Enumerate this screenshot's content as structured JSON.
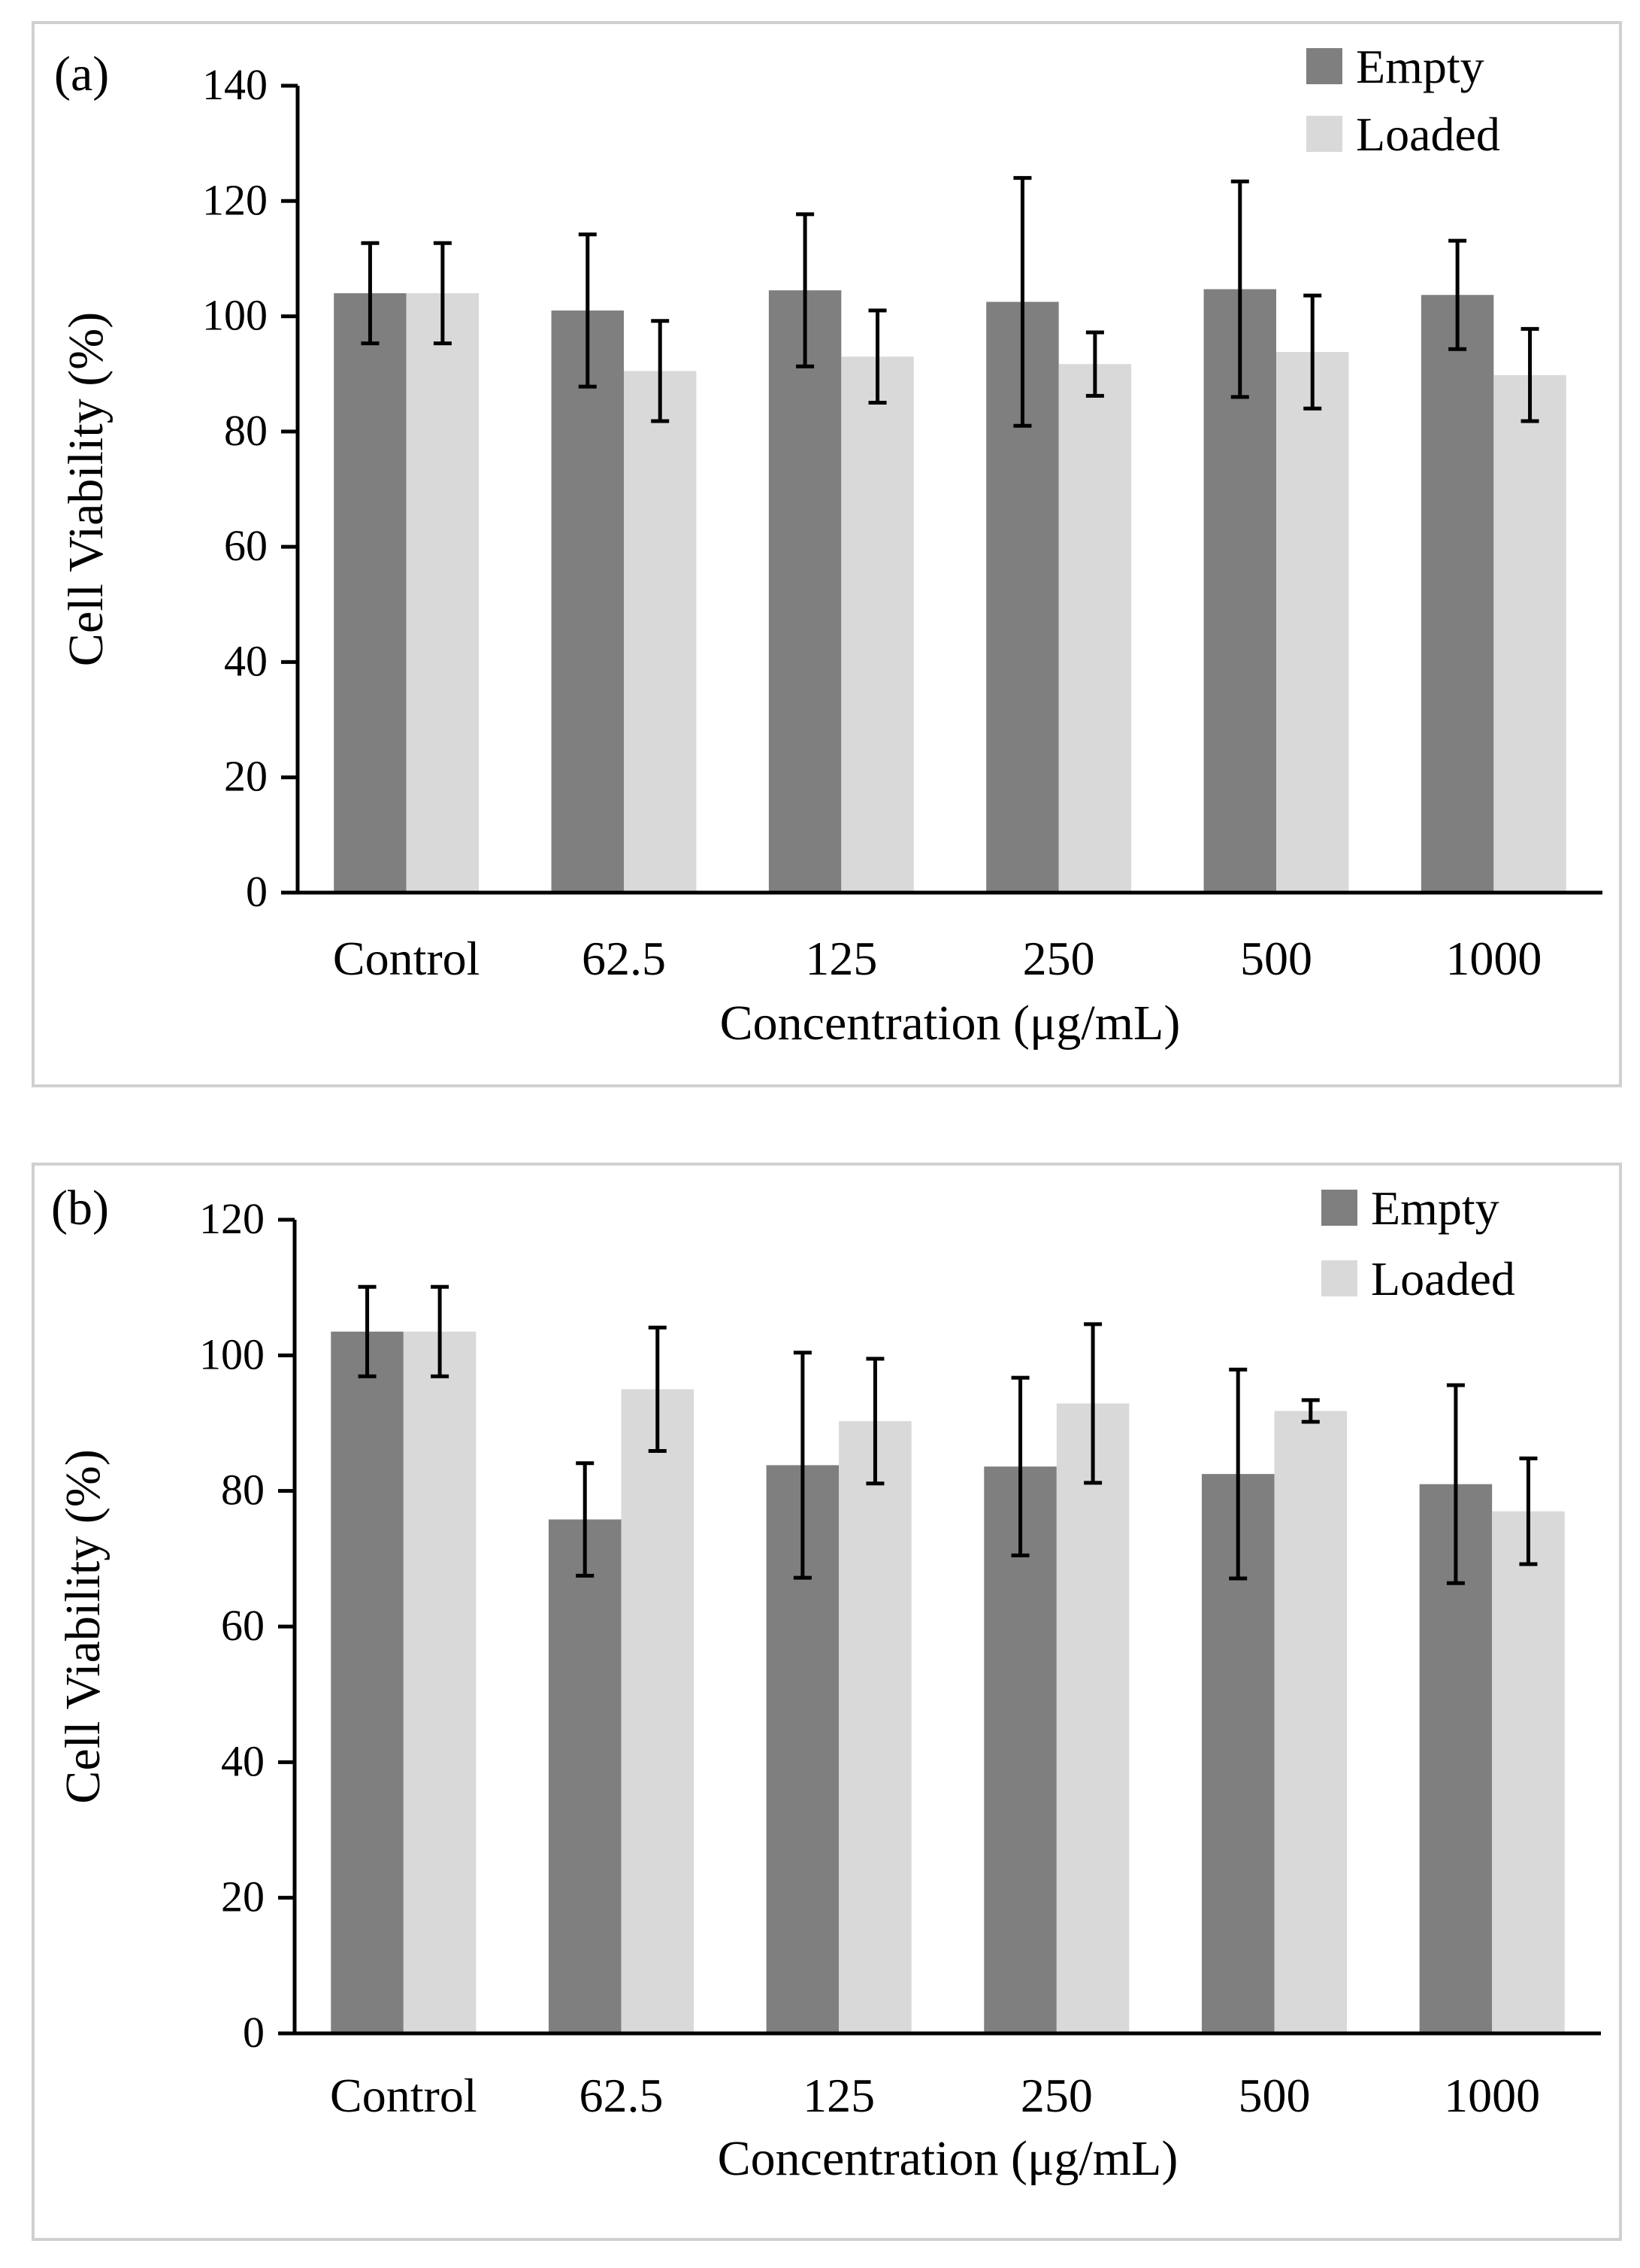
{
  "chart_data": [
    {
      "panel_label": "(a)",
      "type": "bar",
      "categories": [
        "Control",
        "62.5",
        "125",
        "250",
        "500",
        "1000"
      ],
      "xlabel": "Concentration (μg/mL)",
      "ylabel": "Cell Viability (%)",
      "ylim": [
        0,
        140
      ],
      "yticks": [
        0,
        20,
        40,
        60,
        80,
        100,
        120,
        140
      ],
      "grid": false,
      "legend_position": "top-right",
      "series": [
        {
          "name": "Empty",
          "color": "#7f7f7f",
          "values": [
            104,
            101,
            104.5,
            102.5,
            104.7,
            103.7
          ],
          "errors": [
            8.7,
            13.2,
            13.2,
            21.5,
            18.7,
            9.4
          ]
        },
        {
          "name": "Loaded",
          "color": "#d9d9d9",
          "values": [
            104,
            90.5,
            93,
            91.7,
            93.8,
            89.8
          ],
          "errors": [
            8.7,
            8.7,
            8.0,
            5.5,
            9.8,
            8.0
          ]
        }
      ]
    },
    {
      "panel_label": "(b)",
      "type": "bar",
      "categories": [
        "Control",
        "62.5",
        "125",
        "250",
        "500",
        "1000"
      ],
      "xlabel": "Concentration (μg/mL)",
      "ylabel": "Cell Viability (%)",
      "ylim": [
        0,
        120
      ],
      "yticks": [
        0,
        20,
        40,
        60,
        80,
        100,
        120
      ],
      "grid": false,
      "legend_position": "top-right",
      "series": [
        {
          "name": "Empty",
          "color": "#7f7f7f",
          "values": [
            103.5,
            75.8,
            83.8,
            83.6,
            82.5,
            81
          ],
          "errors": [
            6.6,
            8.3,
            16.6,
            13.1,
            15.4,
            14.6
          ]
        },
        {
          "name": "Loaded",
          "color": "#d9d9d9",
          "values": [
            103.5,
            95,
            90.3,
            92.9,
            91.8,
            77
          ],
          "errors": [
            6.6,
            9.1,
            9.2,
            11.7,
            1.6,
            7.8
          ]
        }
      ]
    }
  ]
}
